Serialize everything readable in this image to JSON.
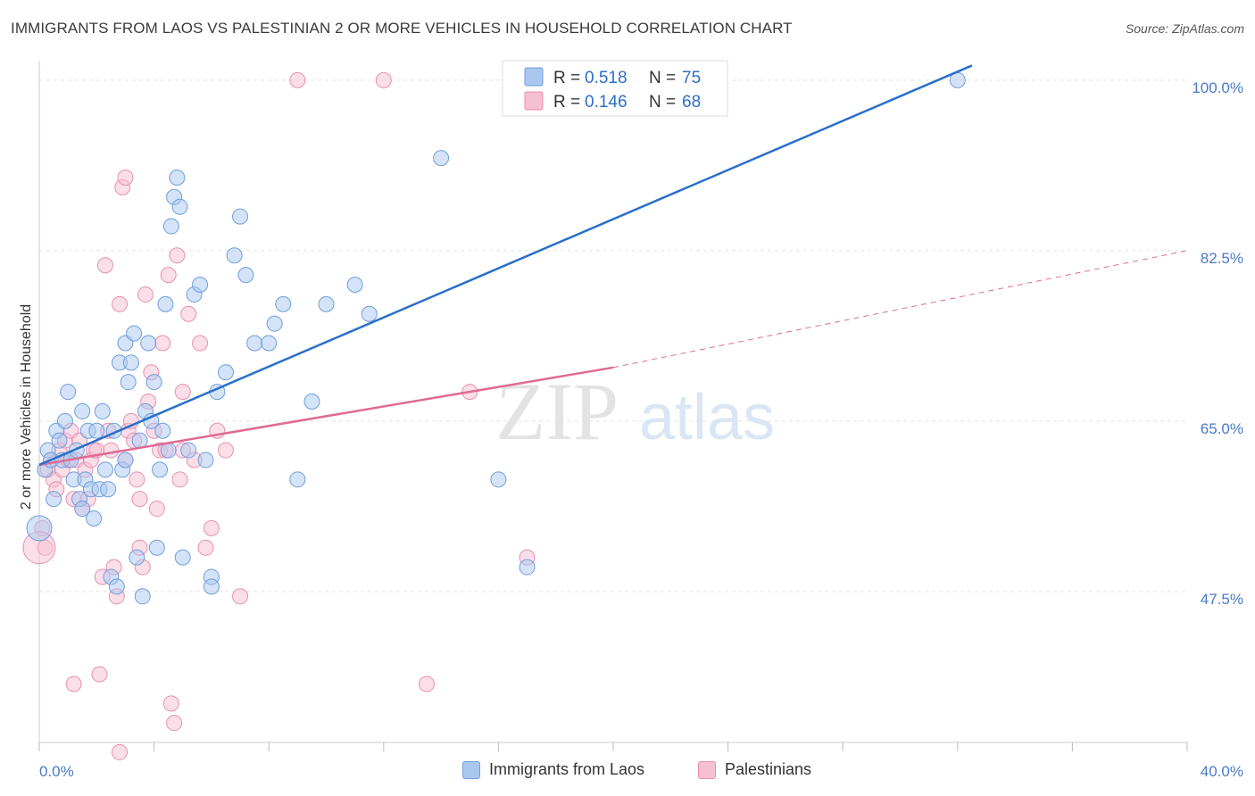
{
  "header": {
    "title": "IMMIGRANTS FROM LAOS VS PALESTINIAN 2 OR MORE VEHICLES IN HOUSEHOLD CORRELATION CHART",
    "source": "Source: ZipAtlas.com"
  },
  "watermark": {
    "part1": "ZIP",
    "part2": "atlas"
  },
  "legend": {
    "rows": [
      {
        "r_label": "R =",
        "r_value": "0.518",
        "n_label": "N =",
        "n_value": "75"
      },
      {
        "r_label": "R =",
        "r_value": "0.146",
        "n_label": "N =",
        "n_value": "68"
      }
    ]
  },
  "bottom_legend": {
    "series1": "Immigrants from Laos",
    "series2": "Palestinians"
  },
  "axes": {
    "x_min_label": "0.0%",
    "x_max_label": "40.0%",
    "y_ticks": [
      "100.0%",
      "82.5%",
      "65.0%",
      "47.5%"
    ],
    "ylabel": "2 or more Vehicles in Household"
  },
  "colors": {
    "blue_fill": "#a9c7ef",
    "blue_stroke": "#6f9fdc",
    "blue_line": "#2a6fcb",
    "pink_fill": "#f6bfd2",
    "pink_stroke": "#e98fb0",
    "pink_line": "#e06a93",
    "tick_color": "#4a7ac9"
  },
  "chart_data": {
    "type": "scatter",
    "xlim": [
      0,
      40
    ],
    "ylim": [
      32,
      102
    ],
    "y_ticks": [
      100,
      82.5,
      65,
      47.5
    ],
    "grid": true,
    "legend_position": "top-center",
    "series": [
      {
        "name": "Immigrants from Laos",
        "color": "#a9c7ef",
        "trend": {
          "x": [
            0,
            32.5
          ],
          "y": [
            60.5,
            101.5
          ]
        },
        "points": [
          [
            0.2,
            60
          ],
          [
            0.3,
            62
          ],
          [
            0.4,
            61
          ],
          [
            0.5,
            57
          ],
          [
            0.6,
            64
          ],
          [
            0.7,
            63
          ],
          [
            0.8,
            61
          ],
          [
            0.9,
            65
          ],
          [
            1.0,
            68
          ],
          [
            1.1,
            61
          ],
          [
            1.2,
            59
          ],
          [
            1.3,
            62
          ],
          [
            1.4,
            57
          ],
          [
            1.5,
            56
          ],
          [
            1.6,
            59
          ],
          [
            1.7,
            64
          ],
          [
            1.8,
            58
          ],
          [
            1.9,
            55
          ],
          [
            2.0,
            64
          ],
          [
            2.1,
            58
          ],
          [
            2.2,
            66
          ],
          [
            2.3,
            60
          ],
          [
            2.4,
            58
          ],
          [
            2.5,
            49
          ],
          [
            2.6,
            64
          ],
          [
            2.7,
            48
          ],
          [
            2.8,
            71
          ],
          [
            2.9,
            60
          ],
          [
            3.0,
            73
          ],
          [
            3.1,
            69
          ],
          [
            3.2,
            71
          ],
          [
            3.3,
            74
          ],
          [
            3.4,
            51
          ],
          [
            3.5,
            63
          ],
          [
            3.6,
            47
          ],
          [
            3.7,
            66
          ],
          [
            3.8,
            73
          ],
          [
            3.9,
            65
          ],
          [
            4.0,
            69
          ],
          [
            4.1,
            52
          ],
          [
            4.2,
            60
          ],
          [
            4.3,
            64
          ],
          [
            4.4,
            77
          ],
          [
            4.5,
            62
          ],
          [
            4.6,
            85
          ],
          [
            4.7,
            88
          ],
          [
            4.8,
            90
          ],
          [
            4.9,
            87
          ],
          [
            5.0,
            51
          ],
          [
            5.2,
            62
          ],
          [
            5.4,
            78
          ],
          [
            5.6,
            79
          ],
          [
            5.8,
            61
          ],
          [
            6.0,
            49
          ],
          [
            6.2,
            68
          ],
          [
            6.5,
            70
          ],
          [
            6.8,
            82
          ],
          [
            7.0,
            86
          ],
          [
            7.2,
            80
          ],
          [
            7.5,
            73
          ],
          [
            8.0,
            73
          ],
          [
            8.2,
            75
          ],
          [
            8.5,
            77
          ],
          [
            9.0,
            59
          ],
          [
            9.5,
            67
          ],
          [
            10.0,
            77
          ],
          [
            11.0,
            79
          ],
          [
            11.5,
            76
          ],
          [
            14.0,
            92
          ],
          [
            16.0,
            59
          ],
          [
            17.0,
            50
          ],
          [
            32.0,
            100
          ],
          [
            1.5,
            66
          ],
          [
            3.0,
            61
          ],
          [
            6.0,
            48
          ]
        ]
      },
      {
        "name": "Palestinians",
        "color": "#f6bfd2",
        "trend": {
          "x": [
            0,
            20
          ],
          "y": [
            60.5,
            70.5
          ]
        },
        "trend_dashed": {
          "x": [
            20,
            40
          ],
          "y": [
            70.5,
            82.5
          ]
        },
        "points": [
          [
            0.1,
            54
          ],
          [
            0.2,
            52
          ],
          [
            0.3,
            60
          ],
          [
            0.4,
            61
          ],
          [
            0.5,
            59
          ],
          [
            0.6,
            58
          ],
          [
            0.7,
            62
          ],
          [
            0.8,
            60
          ],
          [
            0.9,
            63
          ],
          [
            1.0,
            61
          ],
          [
            1.1,
            64
          ],
          [
            1.2,
            57
          ],
          [
            1.3,
            61
          ],
          [
            1.4,
            63
          ],
          [
            1.5,
            56
          ],
          [
            1.6,
            60
          ],
          [
            1.7,
            57
          ],
          [
            1.8,
            61
          ],
          [
            1.9,
            62
          ],
          [
            2.0,
            62
          ],
          [
            2.1,
            39
          ],
          [
            2.2,
            49
          ],
          [
            2.3,
            81
          ],
          [
            2.4,
            64
          ],
          [
            2.5,
            62
          ],
          [
            2.6,
            50
          ],
          [
            2.7,
            47
          ],
          [
            2.8,
            77
          ],
          [
            2.9,
            89
          ],
          [
            3.0,
            61
          ],
          [
            3.1,
            64
          ],
          [
            3.2,
            65
          ],
          [
            3.3,
            63
          ],
          [
            3.4,
            59
          ],
          [
            3.5,
            57
          ],
          [
            3.6,
            50
          ],
          [
            3.7,
            78
          ],
          [
            3.8,
            67
          ],
          [
            3.9,
            70
          ],
          [
            4.0,
            64
          ],
          [
            4.1,
            56
          ],
          [
            4.2,
            62
          ],
          [
            4.3,
            73
          ],
          [
            4.4,
            62
          ],
          [
            4.5,
            80
          ],
          [
            4.6,
            36
          ],
          [
            4.7,
            34
          ],
          [
            4.8,
            82
          ],
          [
            4.9,
            59
          ],
          [
            5.0,
            62
          ],
          [
            5.2,
            76
          ],
          [
            5.4,
            61
          ],
          [
            5.6,
            73
          ],
          [
            5.8,
            52
          ],
          [
            6.0,
            54
          ],
          [
            6.2,
            64
          ],
          [
            6.5,
            62
          ],
          [
            7.0,
            47
          ],
          [
            9.0,
            100
          ],
          [
            12.0,
            100
          ],
          [
            13.5,
            38
          ],
          [
            15.0,
            68
          ],
          [
            17.0,
            51
          ],
          [
            3.0,
            90
          ],
          [
            1.2,
            38
          ],
          [
            2.8,
            31
          ],
          [
            5.0,
            68
          ],
          [
            3.5,
            52
          ]
        ]
      }
    ]
  }
}
